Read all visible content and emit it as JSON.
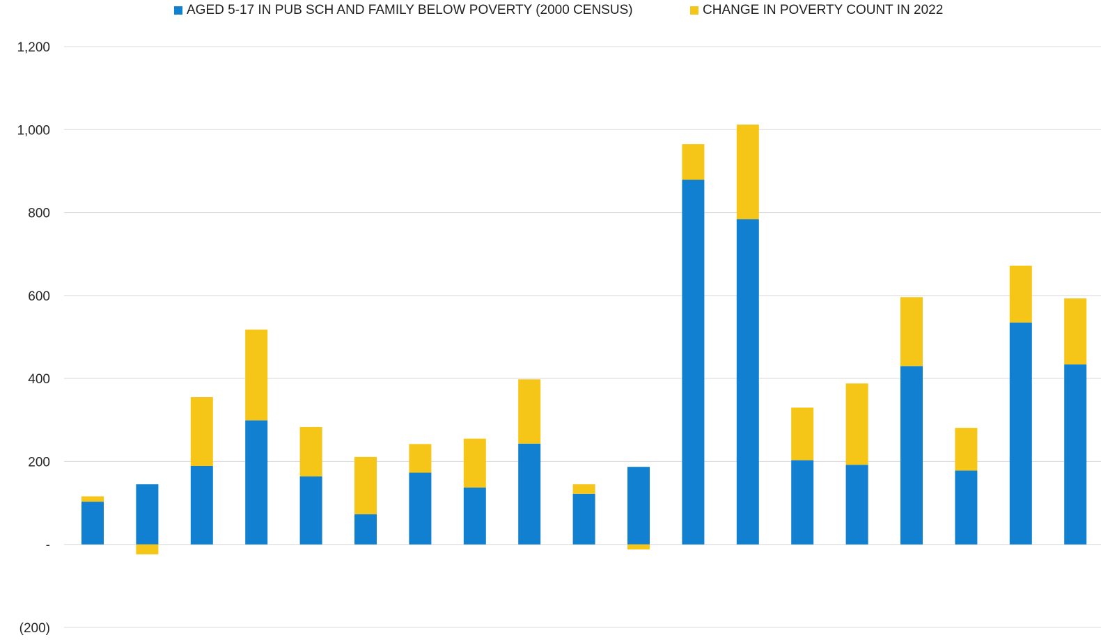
{
  "chart_data": {
    "type": "bar",
    "stacked": true,
    "legend_position": "top",
    "grid": true,
    "ylim": [
      -200,
      1200
    ],
    "yticks": [
      {
        "value": 1200,
        "label": "1,200"
      },
      {
        "value": 1000,
        "label": "1,000"
      },
      {
        "value": 800,
        "label": "800"
      },
      {
        "value": 600,
        "label": "600"
      },
      {
        "value": 400,
        "label": "400"
      },
      {
        "value": 200,
        "label": "200"
      },
      {
        "value": 0,
        "label": "-"
      },
      {
        "value": -200,
        "label": "(200)"
      }
    ],
    "series": [
      {
        "name": "AGED 5-17 IN PUB SCH AND FAMILY BELOW POVERTY (2000 CENSUS)",
        "color": "#1280d0",
        "values": [
          103,
          145,
          189,
          299,
          164,
          73,
          173,
          137,
          243,
          122,
          187,
          879,
          784,
          203,
          192,
          430,
          178,
          535,
          434
        ]
      },
      {
        "name": "CHANGE IN POVERTY COUNT IN 2022",
        "color": "#f5c518",
        "values": [
          13,
          -24,
          166,
          219,
          119,
          138,
          69,
          118,
          155,
          23,
          -12,
          86,
          228,
          127,
          196,
          166,
          103,
          137,
          159
        ]
      }
    ]
  }
}
